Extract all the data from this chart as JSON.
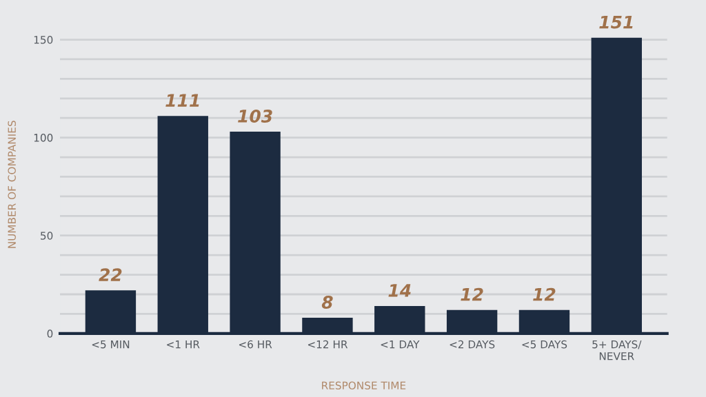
{
  "chart_data": {
    "type": "bar",
    "xlabel": "RESPONSE TIME",
    "ylabel": "NUMBER OF COMPANIES",
    "categories": [
      "<5 MIN",
      "<1 HR",
      "<6 HR",
      "<12 HR",
      "<1 DAY",
      "<2 DAYS",
      "<5 DAYS",
      "5+ DAYS/\nNEVER"
    ],
    "values": [
      22,
      111,
      103,
      8,
      14,
      12,
      12,
      151
    ],
    "color": "#1c2b40",
    "ylim": [
      0,
      152
    ],
    "yticks": [
      0,
      {
        "value": 10,
        "label": null
      },
      {
        "value": 20,
        "label": null
      },
      {
        "value": 30,
        "label": null
      },
      {
        "value": 40,
        "label": null
      },
      50,
      {
        "value": 60,
        "label": null
      },
      {
        "value": 70,
        "label": null
      },
      {
        "value": 80,
        "label": null
      },
      {
        "value": 90,
        "label": null
      },
      100,
      {
        "value": 110,
        "label": null
      },
      {
        "value": 120,
        "label": null
      },
      {
        "value": 130,
        "label": null
      },
      {
        "value": 140,
        "label": null
      },
      150
    ],
    "grid": "y",
    "data_labels": true
  }
}
